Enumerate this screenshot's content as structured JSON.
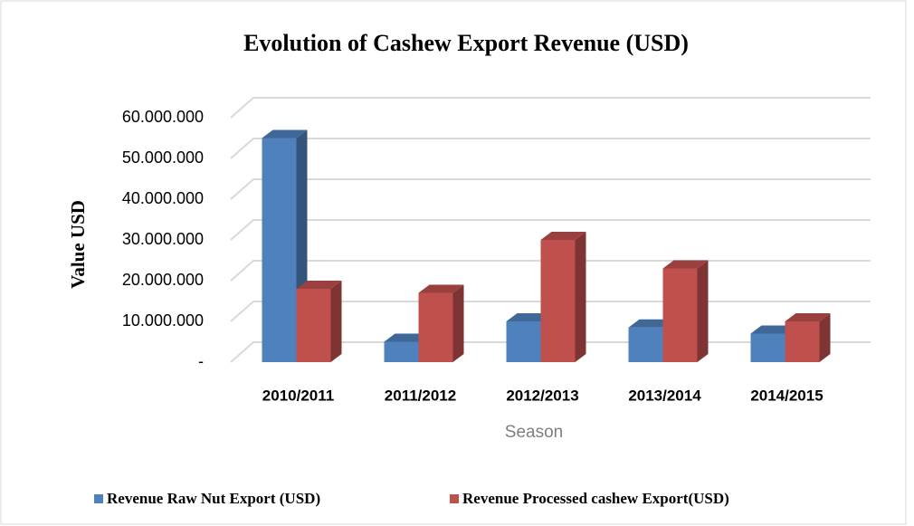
{
  "chart_data": {
    "type": "bar3d",
    "title": "Evolution of Cashew Export  Revenue (USD)",
    "y_label": "Value USD",
    "x_label": "Season",
    "categories": [
      "2010/2011",
      "2011/2012",
      "2012/2013",
      "2013/2014",
      "2014/2015"
    ],
    "series": [
      {
        "name": "Revenue Raw Nut Export  (USD)",
        "color": "#4f81bd",
        "values": [
          55000000,
          5000000,
          10000000,
          8500000,
          7000000
        ]
      },
      {
        "name": "Revenue  Processed  cashew Export(USD)",
        "color": "#c0504d",
        "values": [
          18000000,
          17000000,
          30000000,
          23000000,
          10000000
        ]
      }
    ],
    "ylim": [
      0,
      60000000
    ],
    "yticks": [
      {
        "value": 0,
        "label": "-"
      },
      {
        "value": 10000000,
        "label": "10.000.000"
      },
      {
        "value": 20000000,
        "label": "20.000.000"
      },
      {
        "value": 30000000,
        "label": "30.000.000"
      },
      {
        "value": 40000000,
        "label": "40.000.000"
      },
      {
        "value": 50000000,
        "label": "50.000.000"
      },
      {
        "value": 60000000,
        "label": "60.000.000"
      }
    ],
    "grid": true,
    "legend": "bottom"
  }
}
